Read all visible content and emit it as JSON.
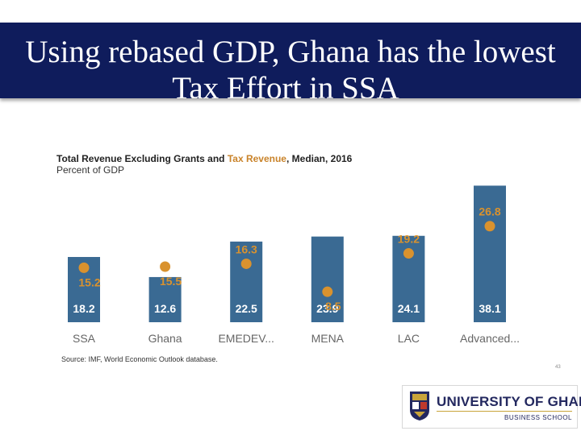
{
  "slide": {
    "title_line1": "Using rebased GDP, Ghana has the lowest",
    "title_line2": "Tax Effort in SSA",
    "source": "Source: IMF, World Economic Outlook database.",
    "page_number": "43"
  },
  "chart_heading": {
    "part1": "Total Revenue Excluding Grants and ",
    "highlight": "Tax Revenue",
    "part2": ", Median, 2016",
    "line2": "Percent of GDP"
  },
  "logo": {
    "name": "UNIVERSITY OF GHANA",
    "sub": "BUSINESS SCHOOL"
  },
  "colors": {
    "title_band": "#0f1c5c",
    "bar": "#3a6a93",
    "dot": "#d9922e",
    "dot_label": "#d9922e",
    "bar_label": "#ffffff",
    "category_label": "#666666"
  },
  "chart_data": {
    "type": "bar",
    "title": "Total Revenue Excluding Grants and Tax Revenue, Median, 2016",
    "ylabel": "Percent of GDP",
    "categories": [
      "SSA",
      "Ghana",
      "EMEDEV...",
      "MENA",
      "LAC",
      "Advanced..."
    ],
    "series": [
      {
        "name": "Total Revenue Excluding Grants",
        "kind": "bar",
        "values": [
          18.2,
          12.6,
          22.5,
          23.9,
          24.1,
          38.1
        ]
      },
      {
        "name": "Tax Revenue",
        "kind": "dot",
        "values": [
          15.2,
          15.5,
          16.3,
          8.5,
          19.2,
          26.8
        ]
      }
    ],
    "ylim": [
      0,
      40
    ]
  }
}
